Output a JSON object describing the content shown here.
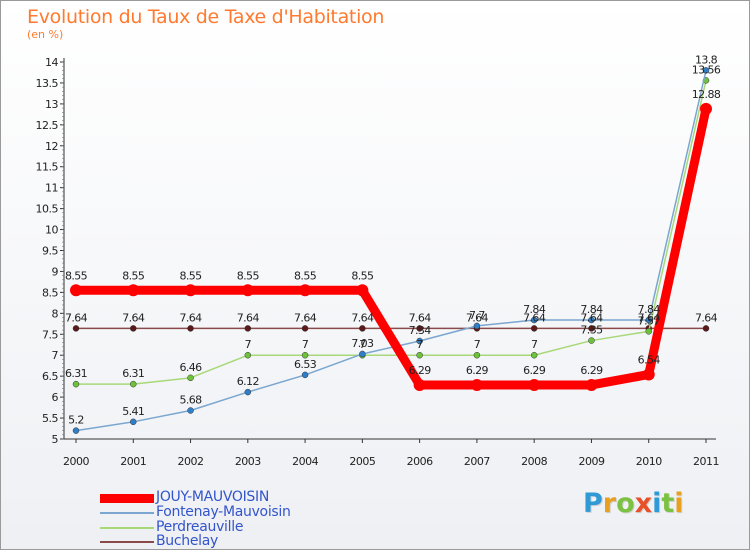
{
  "title": "Evolution du Taux de Taxe d'Habitation",
  "subtitle": "(en %)",
  "logo": {
    "text": "Proxiti",
    "letter_colors": [
      "#2f9ad6",
      "#e8a020",
      "#7cc242",
      "#e8502a",
      "#2f9ad6",
      "#7cc242",
      "#e8a020"
    ]
  },
  "chart_data": {
    "type": "line",
    "x": [
      "2000",
      "2001",
      "2002",
      "2003",
      "2004",
      "2005",
      "2006",
      "2007",
      "2008",
      "2009",
      "2010",
      "2011"
    ],
    "ylim": [
      5,
      14
    ],
    "yticks": [
      "5",
      "5.5",
      "6",
      "6.5",
      "7",
      "7.5",
      "8",
      "8.5",
      "9",
      "9.5",
      "10",
      "10.5",
      "11",
      "11.5",
      "12",
      "12.5",
      "13",
      "13.5",
      "14"
    ],
    "grid": false,
    "legend_position": "bottom-left",
    "series": [
      {
        "name": "JOUY-MAUVOISIN",
        "values": [
          8.55,
          8.55,
          8.55,
          8.55,
          8.55,
          8.55,
          6.29,
          6.29,
          6.29,
          6.29,
          6.54,
          12.88
        ],
        "labels": [
          "8.55",
          "8.55",
          "8.55",
          "8.55",
          "8.55",
          "8.55",
          "6.29",
          "6.29",
          "6.29",
          "6.29",
          "6.54",
          "12.88"
        ],
        "color": "#ff0000",
        "marker": "#ff0000",
        "width": 9,
        "legend_color": "#3355cc"
      },
      {
        "name": "Fontenay-Mauvoisin",
        "values": [
          5.2,
          5.41,
          5.68,
          6.12,
          6.53,
          7.03,
          7.34,
          7.7,
          7.84,
          7.84,
          7.84,
          13.8
        ],
        "labels": [
          "5.2",
          "5.41",
          "5.68",
          "6.12",
          "6.53",
          "7.03",
          "7.34",
          "7.7",
          "7.84",
          "7.84",
          "7.84",
          "13.8"
        ],
        "color": "#7aa6cf",
        "marker": "#2f7fc8",
        "width": 1.5,
        "legend_color": "#3355cc"
      },
      {
        "name": "Perdreauville",
        "values": [
          6.31,
          6.31,
          6.46,
          7,
          7,
          7,
          7,
          7,
          7,
          7.35,
          7.57,
          13.56
        ],
        "labels": [
          "6.31",
          "6.31",
          "6.46",
          "7",
          "7",
          "7",
          "7",
          "7",
          "7",
          "7.35",
          "7.57",
          "13.56"
        ],
        "color": "#a8d878",
        "marker": "#6cc23a",
        "width": 1.5,
        "legend_color": "#3355cc"
      },
      {
        "name": "Buchelay",
        "values": [
          7.64,
          7.64,
          7.64,
          7.64,
          7.64,
          7.64,
          7.64,
          7.64,
          7.64,
          7.64,
          7.64,
          7.64
        ],
        "labels": [
          "7.64",
          "7.64",
          "7.64",
          "7.64",
          "7.64",
          "7.64",
          "7.64",
          "7.64",
          "7.64",
          "7.64",
          "7.64",
          "7.64"
        ],
        "color": "#8a4a4a",
        "marker": "#5a1a1a",
        "width": 1.5,
        "legend_color": "#3355cc"
      }
    ]
  }
}
